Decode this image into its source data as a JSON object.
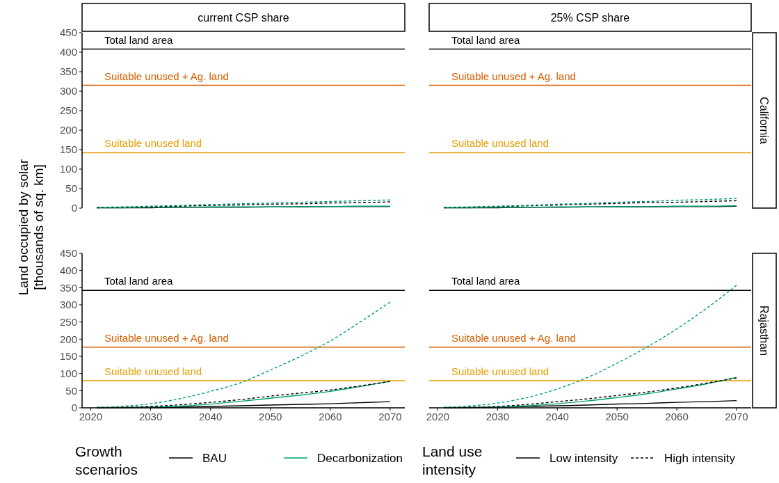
{
  "chart_data": [
    {
      "type": "line",
      "title": "current CSP share",
      "ylabel": "Land occupied by solar\n[thousands of sq. km]",
      "x": [
        2021,
        2025,
        2030,
        2035,
        2040,
        2045,
        2050,
        2055,
        2060,
        2065,
        2070
      ],
      "xlim": [
        2018.55,
        2072.45
      ],
      "ylim": [
        0,
        450
      ],
      "yticks": [
        0,
        50,
        100,
        150,
        200,
        250,
        300,
        350,
        400,
        450
      ],
      "tick_labels": "y",
      "grid": false,
      "legend": false,
      "ref_lines": [
        {
          "axis": "y",
          "value": 408,
          "label": "Total land area",
          "color": "#000000"
        },
        {
          "axis": "y",
          "value": 315,
          "label": "Suitable unused + Ag. land",
          "color": "#d55e00"
        },
        {
          "axis": "y",
          "value": 142,
          "label": "Suitable unused land",
          "color": "#e69f00"
        }
      ],
      "series": [
        {
          "color": "#000000",
          "line_style": "solid",
          "values": [
            1,
            1,
            1,
            2,
            2,
            2,
            3,
            3,
            4,
            4,
            4
          ]
        },
        {
          "color": "#000000",
          "line_style": "dashed",
          "values": [
            1,
            2,
            3,
            5,
            7,
            8,
            10,
            11,
            13,
            14,
            16
          ]
        },
        {
          "color": "#009e73",
          "line_style": "solid",
          "values": [
            1,
            1,
            2,
            2,
            3,
            3,
            3,
            4,
            4,
            5,
            5
          ]
        },
        {
          "color": "#009e73",
          "line_style": "dashed",
          "values": [
            2,
            3,
            5,
            7,
            9,
            11,
            13,
            15,
            17,
            19,
            21
          ]
        }
      ]
    },
    {
      "type": "line",
      "title": "25% CSP share",
      "y2label": "California",
      "x": [
        2021,
        2025,
        2030,
        2035,
        2040,
        2045,
        2050,
        2055,
        2060,
        2065,
        2070
      ],
      "xlim": [
        2018.55,
        2072.45
      ],
      "ylim": [
        0,
        450
      ],
      "tick_labels": false,
      "grid": false,
      "legend": false,
      "ref_lines": [
        {
          "axis": "y",
          "value": 408,
          "label": "Total land area",
          "color": "#000000"
        },
        {
          "axis": "y",
          "value": 315,
          "label": "Suitable unused + Ag. land",
          "color": "#d55e00"
        },
        {
          "axis": "y",
          "value": 142,
          "label": "Suitable unused land",
          "color": "#e69f00"
        }
      ],
      "series": [
        {
          "color": "#000000",
          "line_style": "solid",
          "values": [
            1,
            1,
            1,
            2,
            2,
            3,
            3,
            3,
            4,
            4,
            5
          ]
        },
        {
          "color": "#000000",
          "line_style": "dashed",
          "values": [
            1,
            2,
            4,
            6,
            8,
            10,
            12,
            14,
            15,
            17,
            19
          ]
        },
        {
          "color": "#009e73",
          "line_style": "solid",
          "values": [
            1,
            1,
            2,
            2,
            3,
            3,
            4,
            4,
            5,
            5,
            6
          ]
        },
        {
          "color": "#009e73",
          "line_style": "dashed",
          "values": [
            2,
            3,
            5,
            7,
            10,
            12,
            15,
            17,
            20,
            22,
            25
          ]
        }
      ]
    },
    {
      "type": "line",
      "x": [
        2021,
        2025,
        2030,
        2035,
        2040,
        2045,
        2050,
        2055,
        2060,
        2065,
        2070
      ],
      "xlim": [
        2018.55,
        2072.45
      ],
      "xticks": [
        2020,
        2030,
        2040,
        2050,
        2060,
        2070
      ],
      "ylim": [
        0,
        450
      ],
      "yticks": [
        0,
        50,
        100,
        150,
        200,
        250,
        300,
        350,
        400,
        450
      ],
      "grid": false,
      "legend": "bottom",
      "legend_title": "Growth\nscenarios",
      "ref_lines": [
        {
          "axis": "y",
          "value": 342,
          "label": "Total land area",
          "color": "#000000"
        },
        {
          "axis": "y",
          "value": 177,
          "label": "Suitable unused + Ag. land",
          "color": "#d55e00"
        },
        {
          "axis": "y",
          "value": 79,
          "label": "Suitable unused land",
          "color": "#e69f00"
        }
      ],
      "series": [
        {
          "name": "BAU",
          "color": "#000000",
          "line_style": "solid",
          "values": [
            0,
            1,
            1,
            2,
            4,
            6,
            8,
            10,
            12,
            15,
            18
          ]
        },
        {
          "color": "#000000",
          "line_style": "dashed",
          "values": [
            1,
            1,
            4,
            9,
            16,
            24,
            34,
            43,
            52,
            64,
            77
          ]
        },
        {
          "name": "Decarbonization",
          "color": "#009e73",
          "line_style": "solid",
          "values": [
            1,
            1,
            2,
            5,
            11,
            19,
            28,
            37,
            48,
            62,
            77
          ]
        },
        {
          "color": "#009e73",
          "line_style": "dashed",
          "values": [
            1,
            4,
            12,
            27,
            48,
            73,
            110,
            150,
            195,
            250,
            308
          ]
        }
      ]
    },
    {
      "type": "line",
      "y2label": "Rajasthan",
      "x": [
        2021,
        2025,
        2030,
        2035,
        2040,
        2045,
        2050,
        2055,
        2060,
        2065,
        2070
      ],
      "xlim": [
        2018.55,
        2072.45
      ],
      "xticks": [
        2020,
        2030,
        2040,
        2050,
        2060,
        2070
      ],
      "ylim": [
        0,
        450
      ],
      "tick_labels": "x",
      "grid": false,
      "legend": "bottom",
      "legend_title": "Land use\nintensity",
      "ref_lines": [
        {
          "axis": "y",
          "value": 342,
          "label": "Total land area",
          "color": "#000000"
        },
        {
          "axis": "y",
          "value": 177,
          "label": "Suitable unused + Ag. land",
          "color": "#d55e00"
        },
        {
          "axis": "y",
          "value": 79,
          "label": "Suitable unused land",
          "color": "#e69f00"
        }
      ],
      "series": [
        {
          "name": "Low intensity",
          "color": "#000000",
          "line_style": "solid",
          "values": [
            0,
            1,
            2,
            4,
            6,
            8,
            11,
            13,
            16,
            18,
            21
          ]
        },
        {
          "name": "High intensity",
          "color": "#000000",
          "line_style": "dashed",
          "values": [
            1,
            1,
            4,
            10,
            18,
            26,
            36,
            46,
            58,
            72,
            87
          ]
        },
        {
          "color": "#009e73",
          "line_style": "solid",
          "values": [
            1,
            1,
            2,
            6,
            12,
            20,
            30,
            41,
            55,
            70,
            89
          ]
        },
        {
          "color": "#009e73",
          "line_style": "dashed",
          "values": [
            1,
            5,
            14,
            30,
            55,
            88,
            130,
            177,
            230,
            290,
            357
          ]
        }
      ]
    }
  ]
}
